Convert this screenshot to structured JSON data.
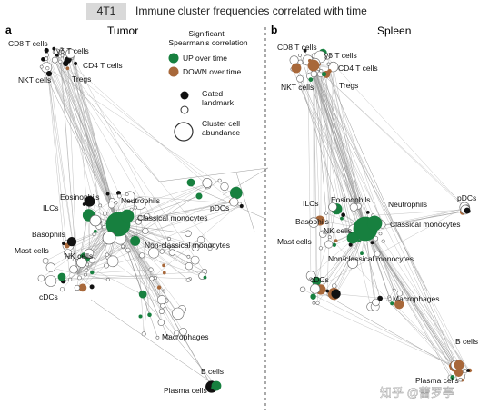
{
  "header": {
    "figure_tag": "4T1",
    "caption": "Immune cluster frequencies correlated with time"
  },
  "panels": [
    {
      "letter": "a",
      "title": "Tumor",
      "labels": [
        "CD8 T cells",
        "γδ T cells",
        "CD4 T cells",
        "NKT cells",
        "Tregs",
        "Eosinophils",
        "Neutrophils",
        "ILCs",
        "Classical monocytes",
        "pDCs",
        "Basophils",
        "Non-classical monocytes",
        "Mast cells",
        "NK cells",
        "cDCs",
        "Macrophages",
        "B cells",
        "Plasma cells"
      ]
    },
    {
      "letter": "b",
      "title": "Spleen",
      "labels": [
        "CD8 T cells",
        "γδ T cells",
        "CD4 T cells",
        "NKT cells",
        "Tregs",
        "Eosinophils",
        "Neutrophils",
        "ILCs",
        "pDCs",
        "Basophils",
        "Classical monocytes",
        "NK cells",
        "Mast cells",
        "Non-classical monocytes",
        "cDCs",
        "Macrophages",
        "B cells",
        "Plasma cells"
      ]
    }
  ],
  "legend": {
    "title_line1": "Significant",
    "title_line2": "Spearman's correlation",
    "up_label": "UP over time",
    "down_label": "DOWN over time",
    "gated_line1": "Gated",
    "gated_line2": "landmark",
    "abundance_line1": "Cluster cell",
    "abundance_line2": "abundance"
  },
  "colors": {
    "up": "#17803f",
    "down": "#a8683a",
    "landmark": "#111111",
    "node_fill": "#ffffff",
    "node_stroke": "#666666",
    "edge": "#9a9a9a",
    "divider": "#555555"
  },
  "watermark": "知乎 @蕾罗亭"
}
